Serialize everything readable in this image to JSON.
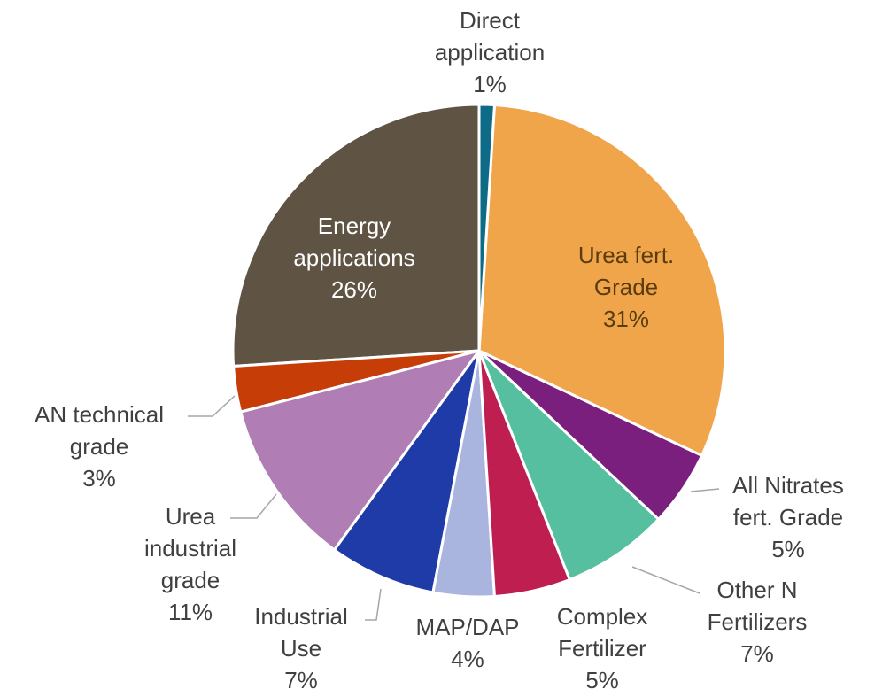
{
  "chart_data": {
    "type": "pie",
    "categories": [
      "Direct application",
      "Urea fert. Grade",
      "All Nitrates fert. Grade",
      "Other N Fertilizers",
      "Complex Fertilizer",
      "MAP/DAP",
      "Industrial Use",
      "Urea industrial grade",
      "AN technical grade",
      "Energy applications"
    ],
    "values": [
      1,
      31,
      5,
      7,
      5,
      4,
      7,
      11,
      3,
      26
    ],
    "value_labels": [
      "1%",
      "31%",
      "5%",
      "7%",
      "5%",
      "4%",
      "7%",
      "11%",
      "3%",
      "26%"
    ],
    "colors": [
      "#0e6b87",
      "#f0a54a",
      "#7a1f7e",
      "#55bfa0",
      "#bf1e50",
      "#a9b5de",
      "#1f3ba8",
      "#b07db5",
      "#c73d07",
      "#5f5444"
    ]
  }
}
